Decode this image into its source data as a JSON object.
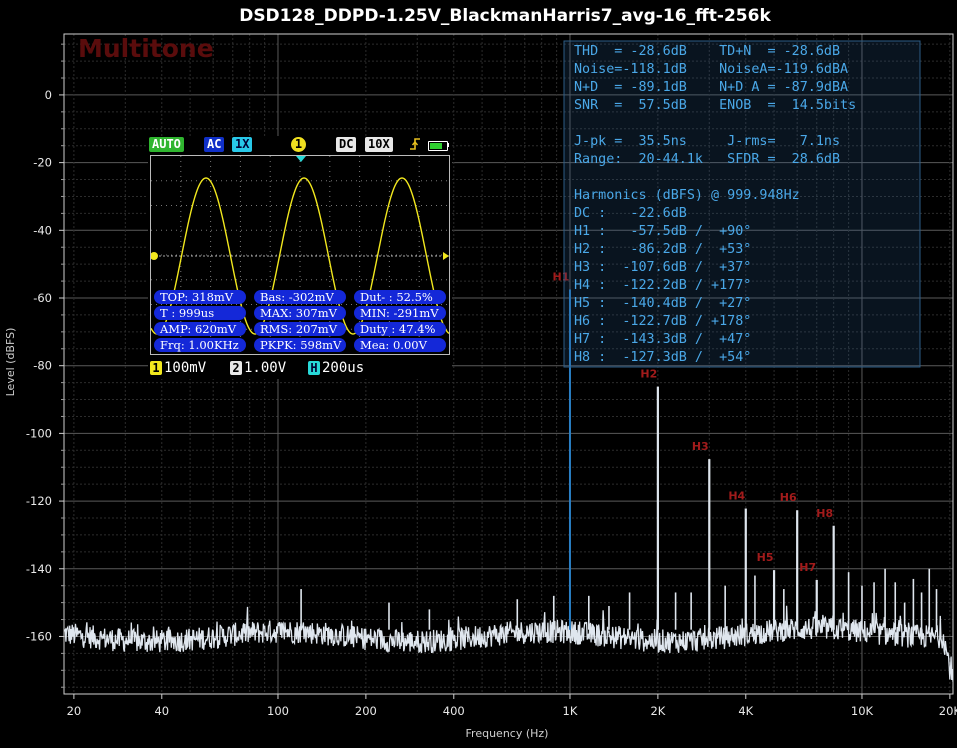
{
  "chart_data": {
    "type": "line",
    "title": "DSD128_DDPD-1.25V_BlackmanHarris7_avg-16_fft-256k",
    "xlabel": "Frequency (Hz)",
    "ylabel": "Level (dBFS)",
    "xscale": "log",
    "xlim": [
      18.5,
      20500
    ],
    "ylim": [
      -177,
      18
    ],
    "xticks": [
      20,
      40,
      100,
      200,
      400,
      1000,
      2000,
      4000,
      10000,
      20000
    ],
    "xtick_labels": [
      "20",
      "40",
      "100",
      "200",
      "400",
      "1K",
      "2K",
      "4K",
      "10K",
      "20K"
    ],
    "yticks": [
      0,
      -20,
      -40,
      -60,
      -80,
      -100,
      -120,
      -140,
      -160
    ],
    "ytick_labels": [
      "0",
      "-20",
      "-40",
      "-60",
      "-80",
      "-100",
      "-120",
      "-140",
      "-160"
    ],
    "grid": true,
    "noise_floor_dbfs": -160,
    "series": [
      {
        "harmonics": [
          {
            "label": "H1",
            "freq": 1000,
            "level": -57.5
          },
          {
            "label": "H2",
            "freq": 2000,
            "level": -86.2
          },
          {
            "label": "H3",
            "freq": 3000,
            "level": -107.6
          },
          {
            "label": "H4",
            "freq": 4000,
            "level": -122.2
          },
          {
            "label": "H5",
            "freq": 5000,
            "level": -140.4
          },
          {
            "label": "H6",
            "freq": 6000,
            "level": -122.7
          },
          {
            "label": "H7",
            "freq": 7000,
            "level": -143.3
          },
          {
            "label": "H8",
            "freq": 8000,
            "level": -127.3
          }
        ],
        "spurs": [
          {
            "freq": 120,
            "level": -146
          },
          {
            "freq": 240,
            "level": -150
          },
          {
            "freq": 330,
            "level": -152
          },
          {
            "freq": 660,
            "level": -149
          },
          {
            "freq": 880,
            "level": -148
          },
          {
            "freq": 1160,
            "level": -148
          },
          {
            "freq": 1360,
            "level": -151
          },
          {
            "freq": 1600,
            "level": -147
          },
          {
            "freq": 2300,
            "level": -147
          },
          {
            "freq": 2600,
            "level": -147
          },
          {
            "freq": 3400,
            "level": -145
          },
          {
            "freq": 4300,
            "level": -142
          },
          {
            "freq": 5400,
            "level": -146
          },
          {
            "freq": 9000,
            "level": -141
          },
          {
            "freq": 10000,
            "level": -145
          },
          {
            "freq": 11000,
            "level": -144
          },
          {
            "freq": 12000,
            "level": -140
          },
          {
            "freq": 13000,
            "level": -144
          },
          {
            "freq": 14000,
            "level": -150
          },
          {
            "freq": 15000,
            "level": -143
          },
          {
            "freq": 16000,
            "level": -147
          },
          {
            "freq": 17000,
            "level": -140
          },
          {
            "freq": 18000,
            "level": -146
          }
        ]
      }
    ],
    "colors": {
      "trace": "#dfe6ee",
      "fundamental": "#2a7fc4",
      "harmonic_label": "#a11b1b",
      "stats_text": "#4aa8e8"
    }
  },
  "watermark": "Multitone",
  "stats": {
    "lines": [
      "THD  = -28.6dB    TD+N  = -28.6dB",
      "Noise=-118.1dB    NoiseA=-119.6dBA",
      "N+D  = -89.1dB    N+D A = -87.9dBA",
      "SNR  =  57.5dB    ENOB  =  14.5bits",
      "",
      "J-pk =  35.5ns     J-rms=   7.1ns",
      "Range:  20-44.1k   SFDR =  28.6dB",
      "",
      "Harmonics (dBFS) @ 999.948Hz",
      "DC :   -22.6dB",
      "H1 :   -57.5dB /  +90°",
      "H2 :   -86.2dB /  +53°",
      "H3 :  -107.6dB /  +37°",
      "H4 :  -122.2dB / +177°",
      "H5 :  -140.4dB /  +27°",
      "H6 :  -122.7dB / +178°",
      "H7 :  -143.3dB /  +47°",
      "H8 :  -127.3dB /  +54°"
    ]
  },
  "scope": {
    "mode": "AUTO",
    "coupling": "AC",
    "probe": "1X",
    "channel_marker": "1",
    "dc": "DC",
    "probe2": "10X",
    "trigger_edge": "rising",
    "measurements": [
      [
        "TOP: 318mV",
        "Bas: -302mV",
        "Dut- : 52.5%"
      ],
      [
        "T : 999us",
        "MAX: 307mV",
        "MIN: -291mV"
      ],
      [
        "AMP: 620mV",
        "RMS: 207mV",
        "Duty : 47.4%"
      ],
      [
        "Frq: 1.00KHz",
        "PKPK: 598mV",
        "Mea: 0.00V"
      ]
    ],
    "ch1_num": "1",
    "ch1_scale": "100mV",
    "ch2_num": "2",
    "ch2_scale": "1.00V",
    "h_chip": "H",
    "time_scale": "200us",
    "colors": {
      "trace": "#f2e81e",
      "meas_bg": "#1428d8",
      "auto_bg": "#2fb52f"
    }
  }
}
